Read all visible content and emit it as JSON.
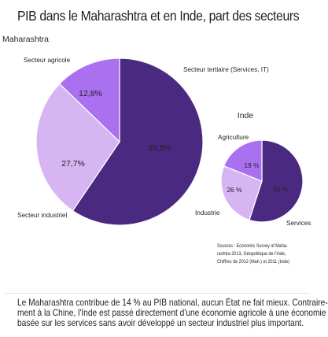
{
  "title": "PIB dans le Maharashtra et en Inde, part des secteurs",
  "sources": [
    "Sources : Economic Survey of Maha-",
    "rashtra 2013, Géopolitique de l'Inde,",
    "Chiffres de 2012 (Mah.) et 2011 (Inde)"
  ],
  "caption": [
    "Le Maharashtra contribue de 14 % au PIB national, aucun État ne fait mieux. Contraire-",
    "ment à la Chine, l'Inde est passé directement d'une économie agricole à une économie",
    "basée sur les services sans avoir développé un secteur industriel plus important."
  ],
  "colors": {
    "tertiaire": "#4a2a80",
    "industriel": "#d7b5f3",
    "agricole": "#a971ef"
  },
  "chart_data": [
    {
      "type": "pie",
      "title": "Maharashtra",
      "slices": [
        {
          "key": "tertiaire",
          "label": "Secteur tertiaire (Services, IT)",
          "value": 59.5,
          "value_label": "59,5%"
        },
        {
          "key": "industriel",
          "label": "Secteur industriel",
          "value": 27.7,
          "value_label": "27,7%"
        },
        {
          "key": "agricole",
          "label": "Secteur agricole",
          "value": 12.8,
          "value_label": "12,8%"
        }
      ]
    },
    {
      "type": "pie",
      "title": "Inde",
      "slices": [
        {
          "key": "tertiaire",
          "label": "Services",
          "value": 55,
          "value_label": "55 %"
        },
        {
          "key": "industriel",
          "label": "Industrie",
          "value": 26,
          "value_label": "26 %"
        },
        {
          "key": "agricole",
          "label": "Agriculture",
          "value": 19,
          "value_label": "19 %"
        }
      ]
    }
  ]
}
